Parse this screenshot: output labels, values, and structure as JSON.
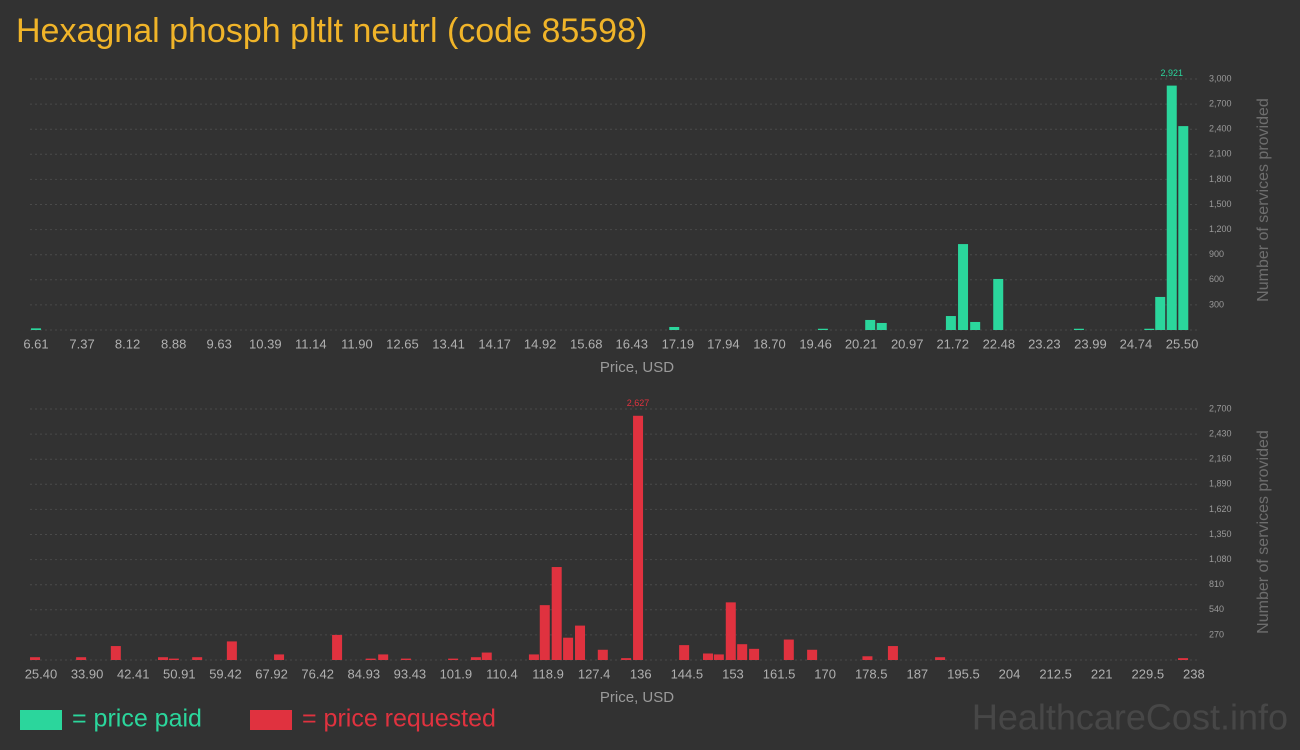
{
  "title": "Hexagnal phosph pltlt neutrl (code 85598)",
  "watermark": "HealthcareCost.info",
  "chart_data": [
    {
      "type": "bar",
      "x_label": "Price, USD",
      "y_label": "Number of services provided",
      "grid": true,
      "xlim": [
        6.5,
        25.7
      ],
      "ylim": [
        0,
        3000
      ],
      "xticks": [
        6.61,
        7.37,
        8.12,
        8.88,
        9.63,
        10.39,
        11.14,
        {
          "value": 11.9,
          "label": "11.90"
        },
        12.65,
        13.41,
        14.17,
        14.92,
        15.68,
        16.43,
        17.19,
        17.94,
        {
          "value": 18.7,
          "label": "18.70"
        },
        19.46,
        20.21,
        20.97,
        21.72,
        22.48,
        23.23,
        23.99,
        24.74,
        {
          "value": 25.5,
          "label": "25.50"
        }
      ],
      "yticks": [
        {
          "value": 300,
          "label": "300"
        },
        {
          "value": 600,
          "label": "600"
        },
        {
          "value": 900,
          "label": "900"
        },
        {
          "value": 1200,
          "label": "1,200"
        },
        {
          "value": 1500,
          "label": "1,500"
        },
        {
          "value": 1800,
          "label": "1,800"
        },
        {
          "value": 2100,
          "label": "2,100"
        },
        {
          "value": 2400,
          "label": "2,400"
        },
        {
          "value": 2700,
          "label": "2,700"
        },
        {
          "value": 3000,
          "label": "3,000"
        }
      ],
      "series": [
        {
          "name": "= price paid",
          "color": "#2bd69c",
          "x": [
            6.61,
            17.13,
            19.58,
            20.36,
            20.55,
            21.69,
            21.89,
            22.09,
            22.47,
            23.8,
            24.96,
            25.14,
            25.33,
            25.52
          ],
          "values": [
            20,
            36,
            15,
            120,
            84,
            167,
            1027,
            96,
            610,
            15,
            15,
            395,
            2921,
            2437
          ],
          "value_labels": [
            null,
            null,
            null,
            null,
            null,
            null,
            null,
            null,
            null,
            null,
            null,
            null,
            "2,921",
            null
          ]
        }
      ]
    },
    {
      "type": "bar",
      "x_label": "Price, USD",
      "y_label": "Number of services provided",
      "grid": true,
      "xlim": [
        24,
        238.5
      ],
      "ylim": [
        0,
        2700
      ],
      "xticks": [
        {
          "value": 25.4,
          "label": "25.40"
        },
        {
          "value": 33.9,
          "label": "33.90"
        },
        42.41,
        50.91,
        59.42,
        67.92,
        76.42,
        84.93,
        93.43,
        101.9,
        110.4,
        118.9,
        127.4,
        136,
        144.5,
        153,
        161.5,
        170,
        178.5,
        187,
        195.5,
        204,
        212.5,
        221,
        229.5,
        238
      ],
      "yticks": [
        {
          "value": 270,
          "label": "270"
        },
        {
          "value": 540,
          "label": "540"
        },
        {
          "value": 810,
          "label": "810"
        },
        {
          "value": 1080,
          "label": "1,080"
        },
        {
          "value": 1350,
          "label": "1,350"
        },
        {
          "value": 1620,
          "label": "1,620"
        },
        {
          "value": 1890,
          "label": "1,890"
        },
        {
          "value": 2160,
          "label": "2,160"
        },
        {
          "value": 2430,
          "label": "2,430"
        },
        {
          "value": 2700,
          "label": "2,700"
        }
      ],
      "series": [
        {
          "name": "= price requested",
          "color": "#e0323f",
          "x": [
            24.3,
            32.8,
            39.2,
            47.9,
            49.9,
            54.2,
            60.6,
            69.3,
            80.0,
            86.2,
            88.5,
            92.7,
            101.4,
            105.6,
            107.6,
            116.3,
            118.3,
            120.5,
            122.6,
            124.8,
            129.0,
            133.3,
            135.5,
            144.0,
            148.4,
            150.4,
            152.6,
            154.7,
            156.9,
            163.3,
            167.6,
            177.8,
            182.5,
            191.2,
            236.0
          ],
          "values": [
            30,
            30,
            150,
            30,
            15,
            30,
            200,
            60,
            270,
            15,
            60,
            15,
            15,
            30,
            80,
            60,
            590,
            1000,
            240,
            370,
            110,
            20,
            2627,
            160,
            70,
            60,
            620,
            170,
            120,
            220,
            110,
            40,
            150,
            30,
            20
          ],
          "value_labels": [
            null,
            null,
            null,
            null,
            null,
            null,
            null,
            null,
            null,
            null,
            null,
            null,
            null,
            null,
            null,
            null,
            null,
            null,
            null,
            null,
            null,
            null,
            "2,627",
            null,
            null,
            null,
            null,
            null,
            null,
            null,
            null,
            null,
            null,
            null,
            null
          ]
        }
      ]
    }
  ]
}
